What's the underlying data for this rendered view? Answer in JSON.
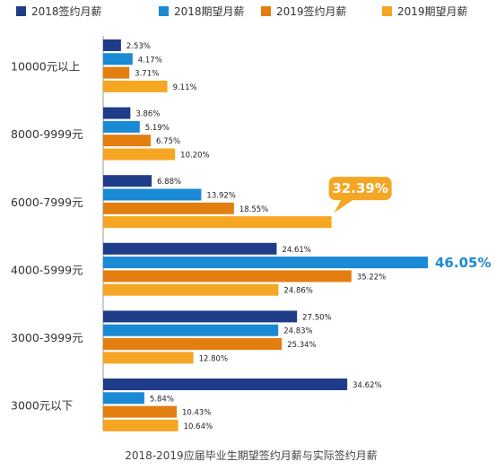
{
  "chart_data": {
    "type": "bar",
    "orientation": "horizontal",
    "title": "",
    "caption": "2018-2019应届毕业生期望签约月薪与实际签约月薪",
    "legend_placement": "top",
    "categories": [
      "10000元以上",
      "8000-9999元",
      "6000-7999元",
      "4000-5999元",
      "3000-3999元",
      "3000元以下"
    ],
    "series": [
      {
        "name": "2018签约月薪",
        "color": "#1F3C88",
        "values": [
          2.53,
          3.86,
          6.88,
          24.61,
          27.5,
          34.62
        ],
        "labels": [
          "2.53%",
          "3.86%",
          "6.88%",
          "24.61%",
          "27.50%",
          "34.62%"
        ]
      },
      {
        "name": "2018期望月薪",
        "color": "#1A8AD4",
        "values": [
          4.17,
          5.19,
          13.92,
          46.05,
          24.83,
          5.84
        ],
        "labels": [
          "4.17%",
          "5.19%",
          "13.92%",
          "46.05%",
          "24.83%",
          "5.84%"
        ]
      },
      {
        "name": "2019签约月薪",
        "color": "#E37E10",
        "values": [
          3.71,
          6.75,
          18.55,
          35.22,
          25.34,
          10.43
        ],
        "labels": [
          "3.71%",
          "6.75%",
          "18.55%",
          "35.22%",
          "25.34%",
          "10.43%"
        ]
      },
      {
        "name": "2019期望月薪",
        "color": "#F5A623",
        "values": [
          9.11,
          10.2,
          32.39,
          24.86,
          12.8,
          10.64
        ],
        "labels": [
          "9.11%",
          "10.20%",
          "32.39%",
          "24.86%",
          "12.80%",
          "10.64%"
        ]
      }
    ],
    "callouts": [
      {
        "text": "32.39%",
        "category_index": 2,
        "series_index": 3,
        "style": "bubble",
        "color": "#F5A623"
      },
      {
        "text": "46.05%",
        "category_index": 3,
        "series_index": 1,
        "style": "text",
        "color": "#1A8AD4"
      }
    ],
    "xlim": [
      0,
      46.05
    ],
    "grid": false
  }
}
